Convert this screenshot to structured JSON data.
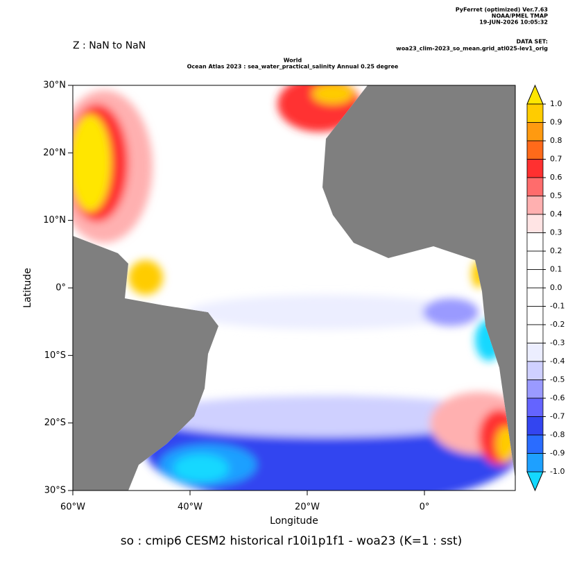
{
  "chart_data": {
    "type": "shaded-map",
    "header": [
      "PyFerret (optimized) Ver.7.63",
      "NOAA/PMEL TMAP",
      "19-JUN-2026 10:05:32"
    ],
    "dataset_label": "DATA SET:",
    "dataset": "woa23_clim-2023_so_mean.grid_atl025-lev1_orig",
    "z_range": "Z : NaN to NaN",
    "title": "World",
    "subtitle": "Ocean Atlas 2023 : sea_water_practical_salinity Annual  0.25 degree",
    "xlabel": "Longitude",
    "ylabel": "Latitude",
    "caption": "so : cmip6 CESM2 historical r10i1p1f1 - woa23  (K=1 : sst)",
    "xlim": [
      -60,
      15.5
    ],
    "xticks": [
      {
        "value": -60,
        "label": "60°W"
      },
      {
        "value": -40,
        "label": "40°W"
      },
      {
        "value": -20,
        "label": "20°W"
      },
      {
        "value": 0,
        "label": "0°"
      }
    ],
    "ylim": [
      -30,
      30
    ],
    "yticks": [
      {
        "value": -30,
        "label": "30°S"
      },
      {
        "value": -20,
        "label": "20°S"
      },
      {
        "value": -10,
        "label": "10°S"
      },
      {
        "value": 0,
        "label": "0°"
      },
      {
        "value": 10,
        "label": "10°N"
      },
      {
        "value": 20,
        "label": "20°N"
      },
      {
        "value": 30,
        "label": "30°N"
      }
    ],
    "colorbar_ticks": [
      {
        "value": 1,
        "label": "1.0"
      },
      0.9,
      0.8,
      0.7,
      0.6,
      0.5,
      0.4,
      0.3,
      0.2,
      0.1,
      {
        "value": 0,
        "label": "0.0"
      },
      -0.1,
      -0.2,
      -0.3,
      -0.4,
      -0.5,
      -0.6,
      -0.7,
      -0.8,
      -0.9,
      {
        "value": -1,
        "label": "-1.0"
      }
    ],
    "colors": [
      "#ffcc00",
      "#ff9a10",
      "#ff6a1a",
      "#ff3030",
      "#ff6c6c",
      "#ffb0b0",
      "#ffe4e4",
      "#ffffff",
      "#ffffff",
      "#ffffff",
      "#ffffff",
      "#ffffff",
      "#ffffff",
      "#eceeff",
      "#cfd0ff",
      "#9a9aff",
      "#6464ff",
      "#3345f0",
      "#2a6cff",
      "#1ea0ff",
      "#14d8ff"
    ],
    "over_color": "#ffe600",
    "under_color": "#14d8ff",
    "land_color": "#7f7f7f"
  }
}
